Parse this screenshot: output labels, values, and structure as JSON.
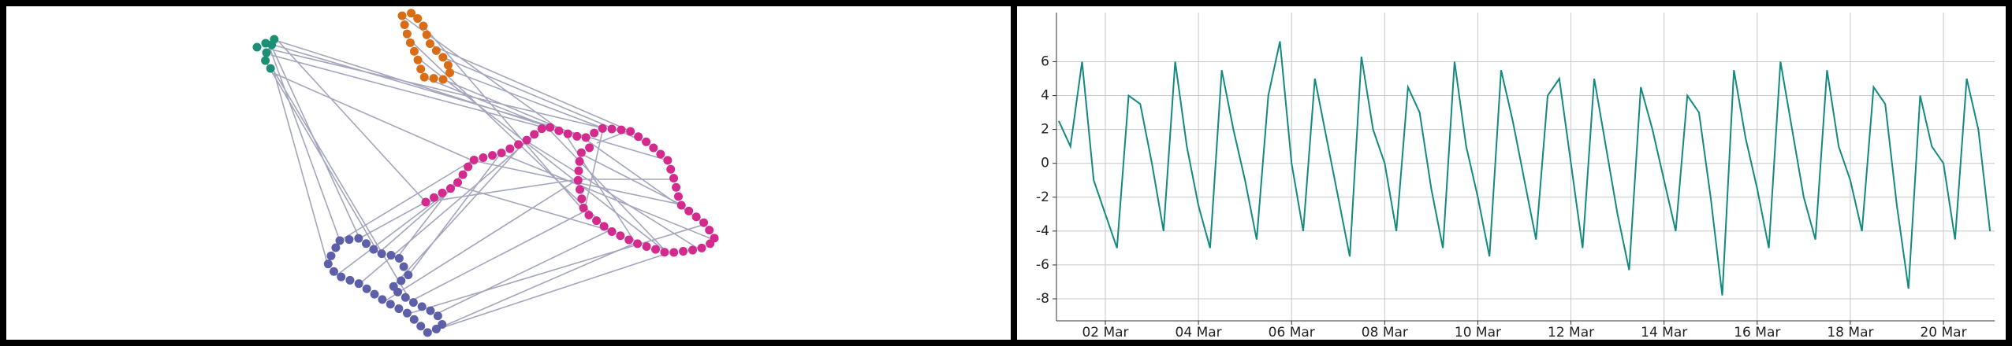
{
  "chart_data": {
    "type": "line",
    "color": "#138a7f",
    "x": [
      1,
      1.25,
      1.5,
      1.75,
      2,
      2.25,
      2.5,
      2.75,
      3,
      3.25,
      3.5,
      3.75,
      4,
      4.25,
      4.5,
      4.75,
      5,
      5.25,
      5.5,
      5.75,
      6,
      6.25,
      6.5,
      6.75,
      7,
      7.25,
      7.5,
      7.75,
      8,
      8.25,
      8.5,
      8.75,
      9,
      9.25,
      9.5,
      9.75,
      10,
      10.25,
      10.5,
      10.75,
      11,
      11.25,
      11.5,
      11.75,
      12,
      12.25,
      12.5,
      12.75,
      13,
      13.25,
      13.5,
      13.75,
      14,
      14.25,
      14.5,
      14.75,
      15,
      15.25,
      15.5,
      15.75,
      16,
      16.25,
      16.5,
      16.75,
      17,
      17.25,
      17.5,
      17.75,
      18,
      18.25,
      18.5,
      18.75,
      19,
      19.25,
      19.5,
      19.75,
      20,
      20.25,
      20.5,
      20.75,
      21
    ],
    "values": [
      2.5,
      1,
      6,
      -1,
      -3,
      -5,
      4,
      3.5,
      0,
      -4,
      6,
      1,
      -2.5,
      -5,
      5.5,
      2,
      -1,
      -4.5,
      4,
      7.2,
      0,
      -4,
      5,
      1.5,
      -2,
      -5.5,
      6.3,
      2,
      0,
      -4,
      4.5,
      3,
      -1.5,
      -5,
      6,
      1,
      -2,
      -5.5,
      5.5,
      2.5,
      -1,
      -4.5,
      4,
      5,
      0,
      -5,
      5,
      1,
      -3,
      -6.3,
      4.5,
      2,
      -1,
      -4,
      4,
      3,
      -2,
      -7.8,
      5.5,
      1.5,
      -1.5,
      -5,
      6,
      2,
      -2,
      -4.5,
      5.5,
      1,
      -1,
      -4,
      4.5,
      3.5,
      -2.5,
      -7.4,
      4,
      1,
      0,
      -4.5,
      5,
      2,
      -4
    ],
    "xlim": [
      0.95,
      21.1
    ],
    "xticks": [
      {
        "value": 2,
        "label": "02 Mar"
      },
      {
        "value": 4,
        "label": "04 Mar"
      },
      {
        "value": 6,
        "label": "06 Mar"
      },
      {
        "value": 8,
        "label": "08 Mar"
      },
      {
        "value": 10,
        "label": "10 Mar"
      },
      {
        "value": 12,
        "label": "12 Mar"
      },
      {
        "value": 14,
        "label": "14 Mar"
      },
      {
        "value": 16,
        "label": "16 Mar"
      },
      {
        "value": 18,
        "label": "18 Mar"
      },
      {
        "value": 20,
        "label": "20 Mar"
      }
    ],
    "ylim": [
      -9.3,
      8.9
    ],
    "yticks": [
      -8,
      -6,
      -4,
      -2,
      0,
      2,
      4,
      6
    ],
    "grid": true
  }
}
